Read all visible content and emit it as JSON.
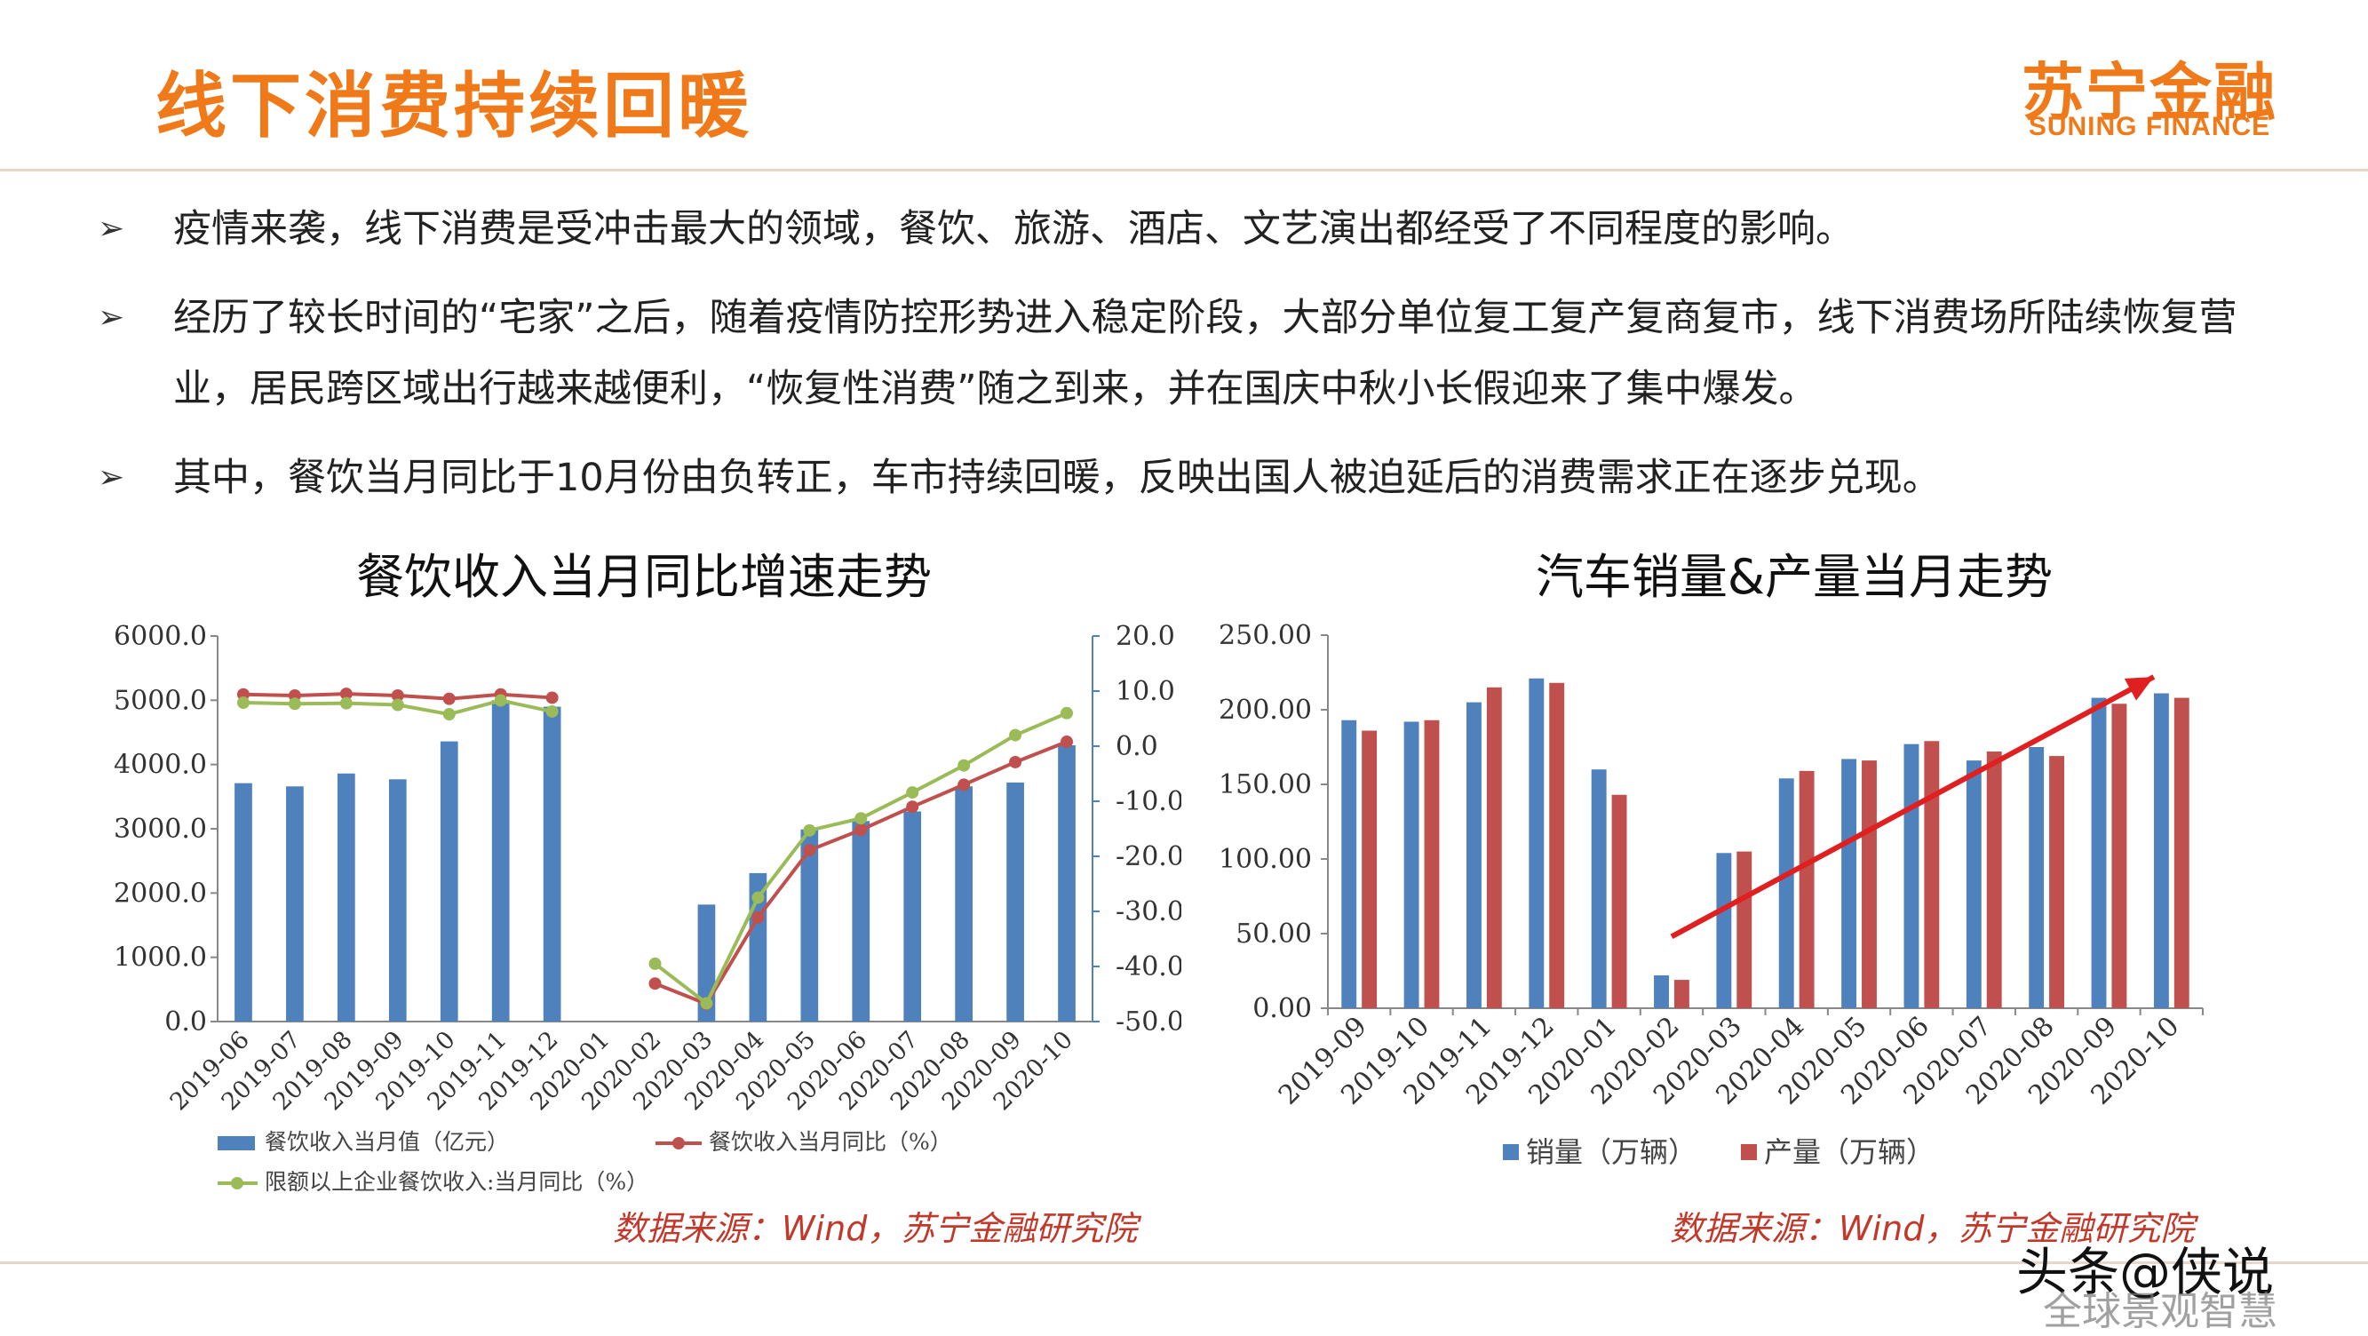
{
  "header": {
    "title": "线下消费持续回暖",
    "logo_cn": "苏宁金融",
    "logo_en": "SUNING FINANCE"
  },
  "bullets": [
    "疫情来袭，线下消费是受冲击最大的领域，餐饮、旅游、酒店、文艺演出都经受了不同程度的影响。",
    "经历了较长时间的“宅家”之后，随着疫情防控形势进入稳定阶段，大部分单位复工复产复商复市，线下消费场所陆续恢复营业，居民跨区域出行越来越便利，“恢复性消费”随之到来，并在国庆中秋小长假迎来了集中爆发。",
    "其中，餐饮当月同比于10月份由负转正，车市持续回暖，反映出国人被迫延后的消费需求正在逐步兑现。"
  ],
  "footer": {
    "watermark": "头条@侠说",
    "watermark_sub": "全球景观智慧"
  },
  "colors": {
    "accent": "#F07A1A",
    "bar_blue": "#4F81BD",
    "line_red": "#C0504D",
    "line_green": "#9BBB59",
    "source_red": "#C0392B"
  },
  "chart_data": [
    {
      "type": "bar+line",
      "title": "餐饮收入当月同比增速走势",
      "source": "数据来源：Wind，苏宁金融研究院",
      "categories": [
        "2019-06",
        "2019-07",
        "2019-08",
        "2019-09",
        "2019-10",
        "2019-11",
        "2019-12",
        "2020-01",
        "2020-02",
        "2020-03",
        "2020-04",
        "2020-05",
        "2020-06",
        "2020-07",
        "2020-08",
        "2020-09",
        "2020-10"
      ],
      "y_left": {
        "range": [
          0,
          6000
        ],
        "ticks": [
          "0.0",
          "1000.0",
          "2000.0",
          "3000.0",
          "4000.0",
          "5000.0",
          "6000.0"
        ]
      },
      "y_right": {
        "range": [
          -50,
          20
        ],
        "ticks": [
          "-50.0",
          "-40.0",
          "-30.0",
          "-20.0",
          "-10.0",
          "0.0",
          "10.0",
          "20.0"
        ]
      },
      "series": [
        {
          "name": "餐饮收入当月值（亿元）",
          "type": "bar",
          "axis": "left",
          "values": [
            3710,
            3660,
            3860,
            3770,
            4360,
            5000,
            4900,
            null,
            null,
            1820,
            2310,
            2990,
            3120,
            3270,
            3660,
            3720,
            4300
          ]
        },
        {
          "name": "餐饮收入当月同比（%）",
          "type": "line",
          "axis": "right",
          "values": [
            9.4,
            9.2,
            9.5,
            9.2,
            8.6,
            9.4,
            8.8,
            null,
            -43.1,
            -46.8,
            -31.1,
            -18.9,
            -15.2,
            -11.0,
            -7.0,
            -2.9,
            0.8
          ]
        },
        {
          "name": "限额以上企业餐饮收入:当月同比（%）",
          "type": "line",
          "axis": "right",
          "values": [
            7.9,
            7.7,
            7.8,
            7.5,
            5.8,
            8.3,
            6.3,
            null,
            -39.5,
            -46.7,
            -27.5,
            -15.3,
            -13.1,
            -8.4,
            -3.5,
            2.0,
            6.0
          ]
        }
      ],
      "legend": "bottom"
    },
    {
      "type": "bar",
      "title": "汽车销量&产量当月走势",
      "source": "数据来源：Wind，苏宁金融研究院",
      "categories": [
        "2019-09",
        "2019-10",
        "2019-11",
        "2019-12",
        "2020-01",
        "2020-02",
        "2020-03",
        "2020-04",
        "2020-05",
        "2020-06",
        "2020-07",
        "2020-08",
        "2020-09",
        "2020-10"
      ],
      "y": {
        "range": [
          0,
          250
        ],
        "ticks": [
          "0.00",
          "50.00",
          "100.00",
          "150.00",
          "200.00",
          "250.00"
        ]
      },
      "series": [
        {
          "name": "销量（万辆）",
          "values": [
            193,
            192,
            205,
            221,
            160,
            22,
            104,
            154,
            167,
            177,
            166,
            175,
            208,
            211
          ]
        },
        {
          "name": "产量（万辆）",
          "values": [
            186,
            193,
            215,
            218,
            143,
            19,
            105,
            159,
            166,
            179,
            172,
            169,
            204,
            208
          ]
        }
      ],
      "trend_arrow": {
        "from": "2020-02",
        "to": "2020-10"
      },
      "legend": "bottom"
    }
  ]
}
